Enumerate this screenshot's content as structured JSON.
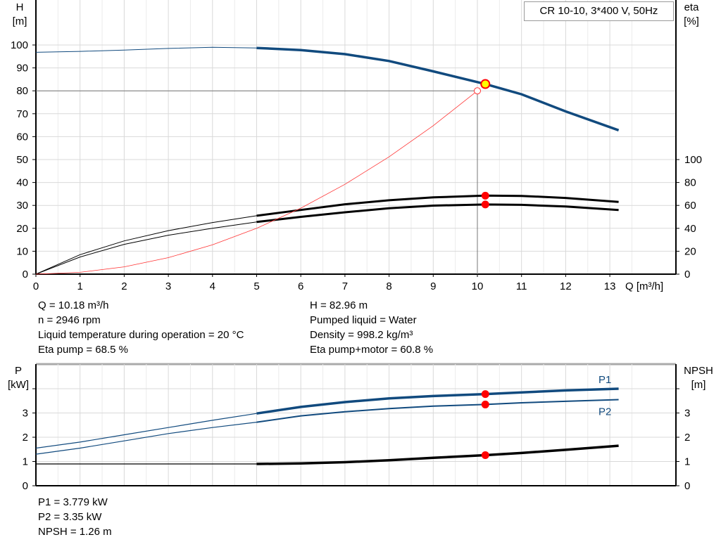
{
  "title": "CR 10-10, 3*400 V, 50Hz",
  "info_top_left": [
    "Q = 10.18 m³/h",
    "n = 2946 rpm",
    "Liquid temperature during operation = 20 °C",
    "Eta pump = 68.5 %"
  ],
  "info_top_right": [
    "H = 82.96 m",
    "Pumped liquid = Water",
    "Density = 998.2 kg/m³",
    "Eta pump+motor = 60.8 %"
  ],
  "info_bottom": [
    "P1 = 3.779 kW",
    "P2 = 3.35 kW",
    "NPSH = 1.26 m"
  ],
  "chart_data": [
    {
      "type": "line",
      "xlabel": "Q [m³/h]",
      "ylabel_top": "H",
      "ylabel_unit": "[m]",
      "y2label_top": "eta",
      "y2label_unit": "[%]",
      "xlim": [
        0,
        14.5
      ],
      "ylim": [
        0,
        110
      ],
      "y2lim": [
        0,
        100
      ],
      "grid": true,
      "xticks": [
        0,
        1,
        2,
        3,
        4,
        5,
        6,
        7,
        8,
        9,
        10,
        11,
        12,
        13
      ],
      "yticks": [
        0,
        10,
        20,
        30,
        40,
        50,
        60,
        70,
        80,
        90,
        100
      ],
      "y2ticks": [
        0,
        20,
        40,
        60,
        80,
        100
      ],
      "series": [
        {
          "id": "H",
          "color": "#114a7e",
          "x": [
            0,
            1,
            2,
            3,
            4,
            5,
            6,
            7,
            8,
            9,
            10.18,
            11,
            12,
            13.2
          ],
          "y": [
            96.8,
            97.2,
            97.8,
            98.5,
            99,
            98.7,
            97.8,
            96,
            93,
            88.5,
            82.96,
            78.5,
            71,
            62.8
          ]
        },
        {
          "id": "eta_pump",
          "axis": "y2",
          "color": "#000000",
          "x": [
            0,
            1,
            2,
            3,
            4,
            5,
            6,
            7,
            8,
            9,
            10.18,
            11,
            12,
            13.2
          ],
          "y": [
            0,
            17,
            29,
            38,
            45,
            51,
            56,
            61,
            64.5,
            67,
            68.5,
            68.3,
            66.5,
            63
          ]
        },
        {
          "id": "eta_pump_motor",
          "axis": "y2",
          "color": "#000000",
          "x": [
            0,
            1,
            2,
            3,
            4,
            5,
            6,
            7,
            8,
            9,
            10.18,
            11,
            12,
            13.2
          ],
          "y": [
            0,
            15,
            26,
            34,
            40,
            45.5,
            50,
            54,
            57.5,
            59.8,
            60.8,
            60.5,
            59,
            56
          ]
        },
        {
          "id": "system",
          "color": "#ff3333",
          "x": [
            0,
            1,
            2,
            3,
            4,
            5,
            6,
            7,
            8,
            9,
            10
          ],
          "y": [
            0,
            0.8,
            3.2,
            7.2,
            12.8,
            20,
            28.8,
            39.2,
            51.2,
            64.8,
            80
          ]
        }
      ],
      "duty_point": {
        "Q": 10.18,
        "H": 82.96,
        "eta_pump": 68.5,
        "eta_pump_motor": 60.8
      },
      "system_point": {
        "Q": 10,
        "H": 80
      },
      "colors": {
        "duty": "#ffff00",
        "marker": "#ff0000",
        "grid": "#d9d9d9"
      }
    },
    {
      "type": "line",
      "ylabel_top": "P",
      "ylabel_unit": "[kW]",
      "y2label_top": "NPSH",
      "y2label_unit": "[m]",
      "xlim": [
        0,
        14.5
      ],
      "ylim": [
        0,
        4.5
      ],
      "grid": true,
      "yticks": [
        0,
        1,
        2,
        3,
        4
      ],
      "ytick_labels": [
        "0",
        "1",
        "2",
        "3",
        ""
      ],
      "series": [
        {
          "id": "P1",
          "name": "P1",
          "color": "#114a7e",
          "x": [
            0,
            1,
            2,
            3,
            4,
            5,
            6,
            7,
            8,
            9,
            10.18,
            11,
            12,
            13.2
          ],
          "y": [
            1.55,
            1.8,
            2.1,
            2.4,
            2.7,
            2.98,
            3.25,
            3.45,
            3.6,
            3.7,
            3.779,
            3.85,
            3.93,
            4.0
          ]
        },
        {
          "id": "P2",
          "name": "P2",
          "color": "#114a7e",
          "x": [
            0,
            1,
            2,
            3,
            4,
            5,
            6,
            7,
            8,
            9,
            10.18,
            11,
            12,
            13.2
          ],
          "y": [
            1.3,
            1.55,
            1.85,
            2.15,
            2.4,
            2.62,
            2.88,
            3.05,
            3.18,
            3.28,
            3.35,
            3.42,
            3.48,
            3.55
          ]
        },
        {
          "id": "NPSH",
          "color": "#000000",
          "x": [
            0,
            1,
            2,
            3,
            4,
            5,
            6,
            7,
            8,
            9,
            10.18,
            11,
            12,
            13.2
          ],
          "y": [
            0.9,
            0.9,
            0.9,
            0.9,
            0.9,
            0.9,
            0.92,
            0.97,
            1.05,
            1.15,
            1.26,
            1.35,
            1.48,
            1.65
          ]
        }
      ],
      "duty_point": {
        "Q": 10.18,
        "P1": 3.779,
        "P2": 3.35,
        "NPSH": 1.26
      }
    }
  ]
}
